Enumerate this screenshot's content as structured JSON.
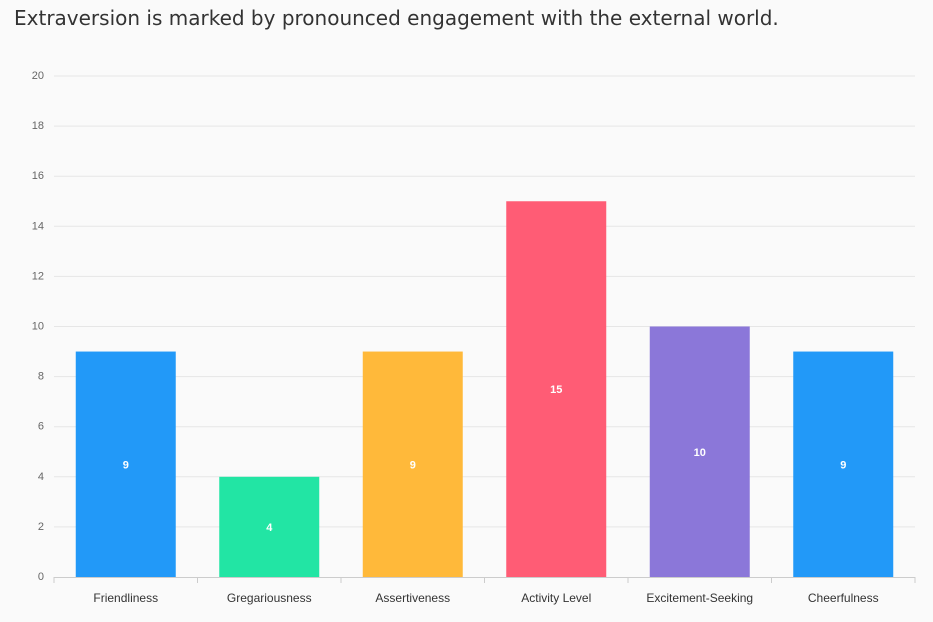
{
  "heading": "Extraversion is marked by pronounced engagement with the external world.",
  "chart_data": {
    "type": "bar",
    "categories": [
      "Friendliness",
      "Gregariousness",
      "Assertiveness",
      "Activity Level",
      "Excitement-Seeking",
      "Cheerfulness"
    ],
    "values": [
      9,
      4,
      9,
      15,
      10,
      9
    ],
    "data_labels": [
      "9",
      "4",
      "9",
      "15",
      "10",
      "9"
    ],
    "colors": [
      "#2299f8",
      "#22e5a4",
      "#ffb93a",
      "#ff5c75",
      "#8b77d9",
      "#2299f8"
    ],
    "ylim": [
      0,
      20
    ],
    "yticks": [
      0,
      2,
      4,
      6,
      8,
      10,
      12,
      14,
      16,
      18,
      20
    ],
    "grid": true,
    "legend": "none"
  }
}
